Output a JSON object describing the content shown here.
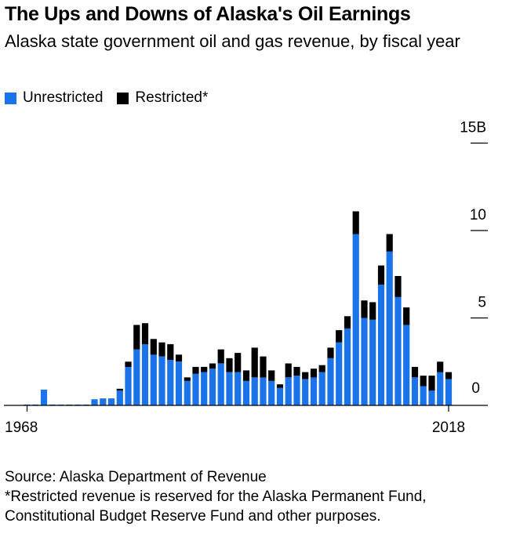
{
  "title": "The Ups and Downs of Alaska's Oil Earnings",
  "subtitle": "Alaska state government oil and gas revenue, by fiscal year",
  "legend": [
    {
      "label": "Unrestricted",
      "color": "#1a73e8"
    },
    {
      "label": "Restricted*",
      "color": "#000000"
    }
  ],
  "chart_data": {
    "type": "bar",
    "stacked": true,
    "x_tick_labels": [
      "1968",
      "2018"
    ],
    "y_tick_labels": [
      "0",
      "5",
      "10",
      "15B"
    ],
    "y_ticks": [
      0,
      5,
      10,
      15
    ],
    "ylim": [
      0,
      15
    ],
    "grid": false,
    "legend_position": "top-left",
    "categories": [
      "1968",
      "1969",
      "1970",
      "1971",
      "1972",
      "1973",
      "1974",
      "1975",
      "1976",
      "1977",
      "1978",
      "1979",
      "1980",
      "1981",
      "1982",
      "1983",
      "1984",
      "1985",
      "1986",
      "1987",
      "1988",
      "1989",
      "1990",
      "1991",
      "1992",
      "1993",
      "1994",
      "1995",
      "1996",
      "1997",
      "1998",
      "1999",
      "2000",
      "2001",
      "2002",
      "2003",
      "2004",
      "2005",
      "2006",
      "2007",
      "2008",
      "2009",
      "2010",
      "2011",
      "2012",
      "2013",
      "2014",
      "2015",
      "2016",
      "2017",
      "2018"
    ],
    "series": [
      {
        "name": "Unrestricted",
        "color": "#1a73e8",
        "values": [
          0.05,
          0.05,
          0.9,
          0.05,
          0.05,
          0.05,
          0.05,
          0.05,
          0.35,
          0.4,
          0.4,
          0.85,
          2.2,
          3.2,
          3.5,
          2.9,
          2.8,
          2.6,
          2.5,
          1.4,
          1.8,
          1.9,
          2.1,
          2.4,
          1.9,
          1.9,
          1.4,
          1.6,
          1.6,
          1.4,
          1.0,
          1.6,
          1.7,
          1.5,
          1.6,
          1.9,
          2.7,
          3.6,
          4.4,
          9.8,
          5.0,
          4.9,
          6.9,
          8.8,
          6.2,
          4.6,
          1.6,
          1.1,
          0.85,
          1.9,
          1.5
        ]
      },
      {
        "name": "Restricted*",
        "color": "#000000",
        "values": [
          0,
          0,
          0,
          0,
          0,
          0,
          0,
          0,
          0,
          0,
          0,
          0.1,
          0.3,
          1.4,
          1.2,
          0.9,
          0.8,
          0.9,
          0.4,
          0.2,
          0.4,
          0.3,
          0.3,
          0.8,
          0.8,
          1.1,
          0.6,
          1.7,
          1.2,
          0.6,
          0.2,
          0.8,
          0.5,
          0.4,
          0.5,
          0.4,
          0.6,
          0.7,
          0.7,
          1.3,
          1.0,
          1.0,
          1.1,
          1.0,
          1.2,
          1.0,
          0.6,
          0.6,
          0.85,
          0.6,
          0.4
        ]
      }
    ]
  },
  "source": "Source: Alaska Department of Revenue",
  "footnote": "*Restricted revenue is reserved for the Alaska Permanent Fund, Constitutional Budget Reserve Fund and other purposes."
}
